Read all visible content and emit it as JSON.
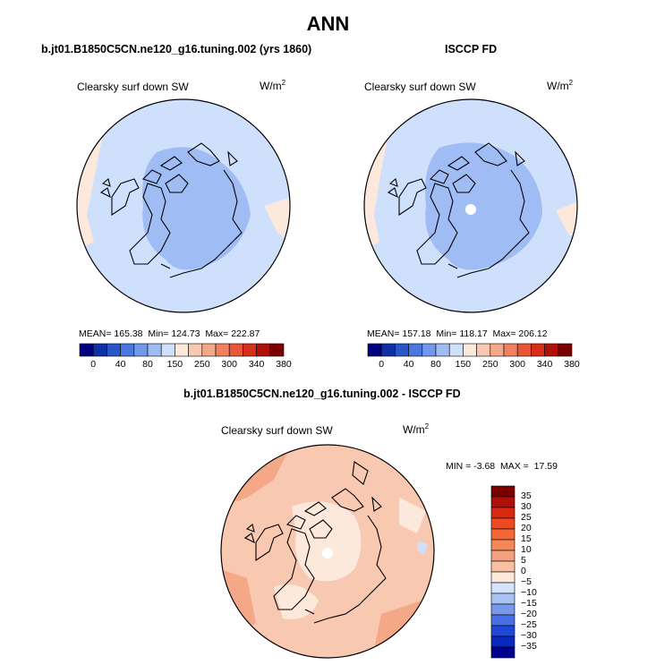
{
  "title": "ANN",
  "panels": [
    {
      "id": "model",
      "title": "b.jt01.B1850C5CN.ne120_g16.tuning.002 (yrs 1860)",
      "variable": "Clearsky surf down SW",
      "units_base": "W/m",
      "units_sup": "2",
      "stats": {
        "mean_label": "MEAN=",
        "mean": "165.38",
        "min_label": "Min=",
        "min": "124.73",
        "max_label": "Max=",
        "max": "222.87"
      }
    },
    {
      "id": "obs",
      "title": "ISCCP FD",
      "variable": "Clearsky surf down SW",
      "units_base": "W/m",
      "units_sup": "2",
      "stats": {
        "mean_label": "MEAN=",
        "mean": "157.18",
        "min_label": "Min=",
        "min": "118.17",
        "max_label": "Max=",
        "max": "206.12"
      }
    }
  ],
  "abs_colorbar": {
    "colors": [
      "#000080",
      "#1030a8",
      "#2858c8",
      "#4878e0",
      "#7098ec",
      "#a0bcf4",
      "#cfe0fc",
      "#fde8dc",
      "#f8c8b0",
      "#f4a888",
      "#f08060",
      "#e85838",
      "#d83018",
      "#b01008",
      "#7a0000"
    ],
    "ticks": [
      "0",
      "40",
      "80",
      "150",
      "250",
      "300",
      "340",
      "380"
    ]
  },
  "diff": {
    "title": "b.jt01.B1850C5CN.ne120_g16.tuning.002 - ISCCP FD",
    "variable": "Clearsky surf down SW",
    "units_base": "W/m",
    "units_sup": "2",
    "min_label": "MIN =",
    "min": "-3.68",
    "max_label": "MAX =",
    "max": "17.59",
    "colorbar": {
      "colors": [
        "#7a0000",
        "#b01008",
        "#d82810",
        "#f04820",
        "#f46838",
        "#f48858",
        "#f4a080",
        "#f8c0a0",
        "#fde8dc",
        "#d4e4fc",
        "#a8c4f4",
        "#7898ec",
        "#4870e4",
        "#2048d8",
        "#0828c0",
        "#000090"
      ],
      "ticks": [
        "35",
        "30",
        "25",
        "20",
        "15",
        "10",
        "5",
        "0",
        "−5",
        "−10",
        "−15",
        "−20",
        "−25",
        "−30",
        "−35"
      ]
    }
  },
  "map_colors": {
    "light_blue": "#cfe0fc",
    "mid_blue": "#a0bcf4",
    "light_peach": "#fde8dc",
    "peach": "#f8c8b0",
    "salmon": "#f4a888"
  }
}
